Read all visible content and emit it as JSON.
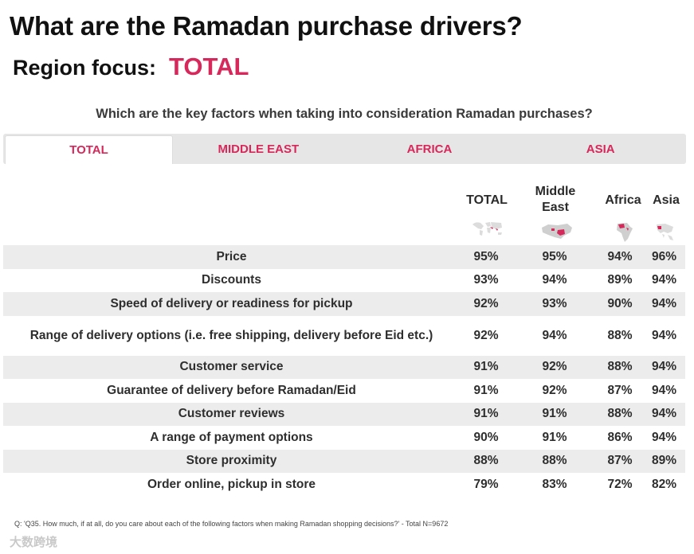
{
  "title": "What are the Ramadan purchase drivers?",
  "region": {
    "label": "Region focus:",
    "value": "TOTAL"
  },
  "question": "Which are the key factors when taking into consideration Ramadan purchases?",
  "tabs": [
    {
      "label": "TOTAL",
      "active": true
    },
    {
      "label": "MIDDLE EAST",
      "active": false
    },
    {
      "label": "AFRICA",
      "active": false
    },
    {
      "label": "ASIA",
      "active": false
    }
  ],
  "columns": [
    "TOTAL",
    "Middle East",
    "Africa",
    "Asia"
  ],
  "rows": [
    {
      "label": "Price",
      "values": [
        "95%",
        "95%",
        "94%",
        "96%"
      ]
    },
    {
      "label": "Discounts",
      "values": [
        "93%",
        "94%",
        "89%",
        "94%"
      ]
    },
    {
      "label": "Speed of delivery or readiness for pickup",
      "values": [
        "92%",
        "93%",
        "90%",
        "94%"
      ]
    },
    {
      "label": "Range of delivery options (i.e. free shipping, delivery before Eid etc.)",
      "values": [
        "92%",
        "94%",
        "88%",
        "94%"
      ]
    },
    {
      "label": "Customer service",
      "values": [
        "91%",
        "92%",
        "88%",
        "94%"
      ]
    },
    {
      "label": "Guarantee of delivery before Ramadan/Eid",
      "values": [
        "91%",
        "92%",
        "87%",
        "94%"
      ]
    },
    {
      "label": "Customer reviews",
      "values": [
        "91%",
        "91%",
        "88%",
        "94%"
      ]
    },
    {
      "label": "A range of payment options",
      "values": [
        "90%",
        "91%",
        "86%",
        "94%"
      ]
    },
    {
      "label": "Store proximity",
      "values": [
        "88%",
        "88%",
        "87%",
        "89%"
      ]
    },
    {
      "label": "Order online, pickup in store",
      "values": [
        "79%",
        "83%",
        "72%",
        "82%"
      ]
    }
  ],
  "footnote": "Q: 'Q35. How much, if at all, do you care about each of the following factors when making Ramadan shopping decisions?' - Total N=9672",
  "watermark": "大数跨境",
  "colors": {
    "accent": "#d6285a",
    "shade": "#ececec",
    "tabbar": "#e6e6e6"
  }
}
